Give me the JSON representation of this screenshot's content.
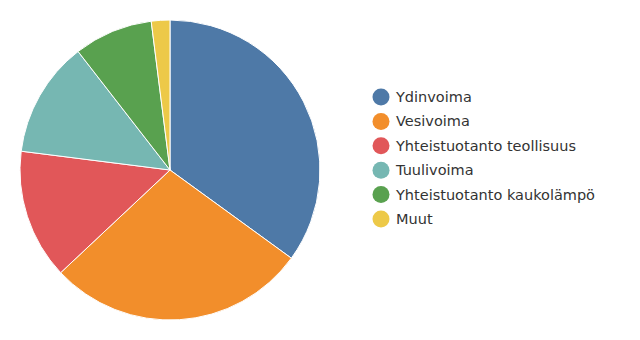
{
  "chart_data": {
    "type": "pie",
    "categories": [
      "Ydinvoima",
      "Vesivoima",
      "Yhteistuotanto teollisuus",
      "Tuulivoima",
      "Yhteistuotanto kaukolämpö",
      "Muut"
    ],
    "values": [
      35,
      28,
      14,
      12.5,
      8.5,
      2
    ],
    "colors": [
      "#4e79a7",
      "#f28e2b",
      "#e15759",
      "#76b7b2",
      "#59a14f",
      "#edc948"
    ],
    "legend": "right"
  }
}
